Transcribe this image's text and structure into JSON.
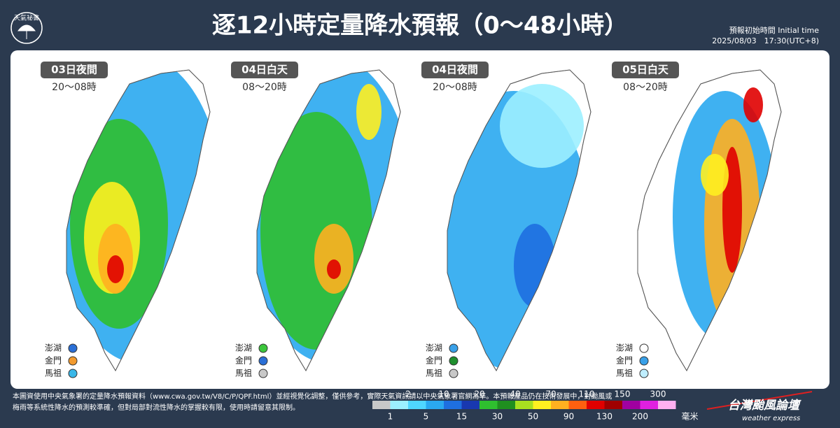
{
  "header": {
    "logo_text": "天氣祕書",
    "title": "逐12小時定量降水預報（0～48小時）",
    "init_label": "預報初始時間 Initial time",
    "init_time": "2025/08/03　17:30(UTC+8)"
  },
  "panels": [
    {
      "title": "03日夜間",
      "time": "20～08時",
      "islands": [
        {
          "name": "澎湖",
          "color": "#2a6fd6"
        },
        {
          "name": "金門",
          "color": "#f29a2e"
        },
        {
          "name": "馬祖",
          "color": "#39b7e8"
        }
      ]
    },
    {
      "title": "04日白天",
      "time": "08～20時",
      "islands": [
        {
          "name": "澎湖",
          "color": "#3cc63c"
        },
        {
          "name": "金門",
          "color": "#2a6fd6"
        },
        {
          "name": "馬祖",
          "color": "#c8c8c8"
        }
      ]
    },
    {
      "title": "04日夜間",
      "time": "20～08時",
      "islands": [
        {
          "name": "澎湖",
          "color": "#39a0e8"
        },
        {
          "name": "金門",
          "color": "#1f8f2e"
        },
        {
          "name": "馬祖",
          "color": "#c8c8c8"
        }
      ]
    },
    {
      "title": "05日白天",
      "time": "08～20時",
      "islands": [
        {
          "name": "澎湖",
          "color": "#ffffff"
        },
        {
          "name": "金門",
          "color": "#39a0e8"
        },
        {
          "name": "馬祖",
          "color": "#bfeeff"
        }
      ]
    }
  ],
  "footer": {
    "lines": [
      "本圖資使用中央氣象署的定量降水預報資料（www.cwa.gov.tw/V8/C/P/QPF.html）並經視覺化調整，僅供參考，實際天氣資訊請以中央氣象署官網為準。本預報產品仍在技術發展中，對颱風或",
      "梅雨等系統性降水的預測較準確，但對局部對流性降水的掌握較有限，使用時請留意其限制。"
    ]
  },
  "legend": {
    "top_labels": [
      "2",
      "10",
      "20",
      "40",
      "70",
      "110",
      "150",
      "300"
    ],
    "bottom_labels": [
      "1",
      "5",
      "15",
      "30",
      "50",
      "90",
      "130",
      "200"
    ],
    "unit": "毫米",
    "colors": [
      "#c8c8c8",
      "#9cf0ff",
      "#4fd6ff",
      "#2aa8f0",
      "#1e6fe0",
      "#1838b0",
      "#2fbf2f",
      "#1f8f1f",
      "#a8e020",
      "#fff020",
      "#ffb020",
      "#ff6010",
      "#e00000",
      "#a00000",
      "#a000a0",
      "#e020e0",
      "#ffb0f0"
    ]
  },
  "brand": {
    "name": "台灣颱風論壇",
    "tagline": "weather express"
  }
}
